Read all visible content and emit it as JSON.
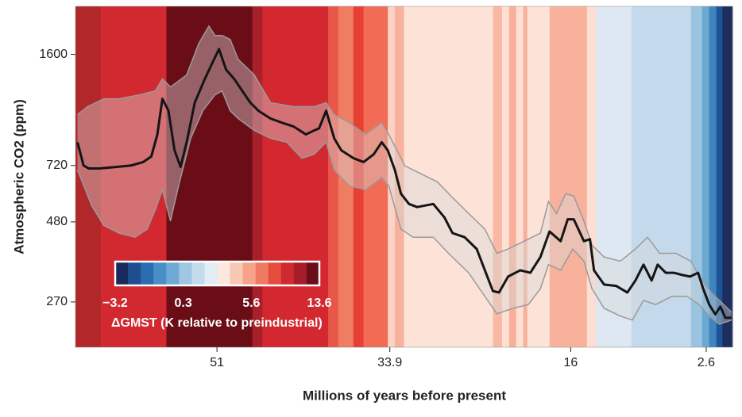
{
  "chart_data": {
    "type": "line",
    "x_label": "Millions of years before present",
    "y_label": "Atmospheric CO2 (ppm)",
    "xlim": [
      65,
      0
    ],
    "xticks": [
      51,
      33.9,
      16,
      2.6
    ],
    "ylim": [
      195,
      2260
    ],
    "yticks": [
      270,
      480,
      720,
      1600
    ],
    "log_y": true,
    "stripes": {
      "edges": [
        65,
        62.5,
        56,
        47.5,
        46.5,
        40,
        39,
        37.5,
        36.5,
        34.1,
        33.4,
        32.5,
        31,
        23.7,
        22.8,
        22.1,
        21.4,
        20.7,
        20.3,
        18.1,
        14.4,
        13.5,
        10,
        4.1,
        3,
        2.3,
        1.6,
        1,
        0
      ],
      "colors": [
        "#b2282a",
        "#d1292f",
        "#6b0d17",
        "#a8202a",
        "#d3282f",
        "#e8574a",
        "#f07c62",
        "#e83f34",
        "#f26c55",
        "#fbd3c4",
        "#f7b19d",
        "#fde2d6",
        "#fde3d7",
        "#f9b9a5",
        "#fde0d3",
        "#f8b09a",
        "#fde0d3",
        "#f7b09b",
        "#fde3d7",
        "#f8b29b",
        "#fdded2",
        "#dde8f3",
        "#c4d9ec",
        "#99c4e0",
        "#6ba8d2",
        "#3f84be",
        "#1b5596",
        "#1d2d5e"
      ]
    },
    "band": {
      "color": "rgba(215,215,215,0.42)",
      "edge_color": "#9a9a9a",
      "upper": {
        "x": [
          64.8,
          63.8,
          62.2,
          60.7,
          58.7,
          57.1,
          56.4,
          55.6,
          54.0,
          52.8,
          51.8,
          51.2,
          50.5,
          49.7,
          48.9,
          47.3,
          45.7,
          43.4,
          41.4,
          40.2,
          39.4,
          37.9,
          36.3,
          34.7,
          34.0,
          32.4,
          30.8,
          29.2,
          27.7,
          26.1,
          24.5,
          23.3,
          22.2,
          20.6,
          19.0,
          18.2,
          17.4,
          16.5,
          15.7,
          14.7,
          13.9,
          12.7,
          11.1,
          9.6,
          8.4,
          7.2,
          5.6,
          4.1,
          3.3,
          2.1,
          1.3,
          0.1
        ],
        "values": [
          1038,
          1099,
          1163,
          1163,
          1196,
          1231,
          1342,
          1266,
          1380,
          1731,
          1961,
          1833,
          1833,
          1782,
          1544,
          1380,
          1131,
          1099,
          1099,
          1131,
          1038,
          980,
          900,
          980,
          900,
          718,
          678,
          640,
          572,
          510,
          456,
          383,
          395,
          418,
          443,
          556,
          510,
          588,
          578,
          483,
          406,
          373,
          362,
          395,
          430,
          383,
          383,
          362,
          324,
          289,
          273,
          251
        ]
      },
      "lower": {
        "x": [
          64.8,
          63.4,
          62.2,
          60.7,
          59.1,
          57.9,
          57.1,
          56.4,
          55.6,
          54.8,
          53.6,
          52.4,
          51.2,
          50.5,
          49.7,
          48.9,
          47.3,
          45.7,
          44.1,
          42.6,
          41.4,
          40.2,
          39.4,
          37.9,
          36.3,
          34.7,
          34.0,
          32.8,
          31.6,
          29.6,
          28.1,
          26.1,
          24.5,
          23.3,
          21.7,
          20.2,
          19.0,
          18.2,
          17.0,
          15.8,
          14.7,
          13.9,
          12.7,
          11.1,
          9.9,
          8.8,
          7.6,
          6.0,
          4.5,
          3.3,
          2.3,
          1.3,
          0.1
        ],
        "values": [
          697,
          540,
          468,
          443,
          430,
          456,
          524,
          605,
          483,
          622,
          875,
          1067,
          1196,
          1231,
          1067,
          1009,
          926,
          875,
          851,
          759,
          780,
          851,
          697,
          622,
          605,
          659,
          622,
          456,
          430,
          430,
          383,
          333,
          281,
          248,
          258,
          265,
          297,
          353,
          339,
          395,
          362,
          297,
          258,
          244,
          237,
          273,
          265,
          281,
          281,
          265,
          244,
          230,
          237
        ]
      }
    },
    "series": [
      {
        "color": "#151515",
        "x": [
          64.8,
          64.2,
          63.7,
          62.6,
          61.1,
          59.5,
          58.3,
          57.5,
          56.9,
          56.4,
          55.8,
          55.2,
          54.6,
          54.0,
          53.2,
          52.2,
          51.4,
          50.8,
          50.1,
          49.3,
          48.5,
          47.7,
          46.9,
          45.7,
          44.6,
          43.4,
          42.2,
          41.4,
          40.9,
          40.2,
          39.4,
          38.7,
          37.5,
          36.5,
          35.5,
          34.7,
          34.1,
          33.4,
          32.8,
          32.0,
          31.2,
          29.6,
          28.5,
          27.7,
          26.5,
          25.3,
          24.4,
          23.7,
          23.1,
          22.2,
          21.0,
          20.0,
          19.0,
          18.1,
          17.0,
          16.3,
          15.7,
          14.7,
          14.1,
          13.7,
          12.7,
          11.5,
          10.4,
          9.6,
          8.8,
          8.0,
          7.4,
          6.6,
          5.8,
          5.0,
          4.2,
          3.4,
          2.9,
          2.3,
          1.7,
          1.2,
          0.7,
          0.1
        ],
        "values": [
          851,
          720,
          705,
          705,
          712,
          720,
          738,
          768,
          900,
          1163,
          1067,
          803,
          713,
          851,
          1131,
          1342,
          1519,
          1663,
          1434,
          1342,
          1231,
          1131,
          1067,
          1009,
          980,
          952,
          900,
          926,
          940,
          1067,
          875,
          803,
          759,
          738,
          780,
          851,
          803,
          697,
          588,
          546,
          534,
          546,
          496,
          443,
          430,
          395,
          333,
          292,
          289,
          324,
          339,
          333,
          373,
          448,
          418,
          489,
          489,
          418,
          424,
          339,
          306,
          303,
          289,
          315,
          353,
          315,
          353,
          333,
          333,
          328,
          324,
          333,
          297,
          265,
          247,
          261,
          241,
          241
        ]
      }
    ],
    "colorbar": {
      "label": "ΔGMST (K relative to preindustrial)",
      "colors": [
        "#1a2a5c",
        "#1f4e8f",
        "#2a6cb0",
        "#4a8ec6",
        "#6fa9d4",
        "#9ec7e2",
        "#c4dbee",
        "#e2ecf5",
        "#fde8de",
        "#f9c8b4",
        "#f5a48a",
        "#ef7a62",
        "#e64c3c",
        "#cf2a2f",
        "#a51d28",
        "#6b0d17"
      ],
      "ticks": [
        {
          "value": -3.2,
          "label": "−3.2"
        },
        0.3,
        5.6,
        13.6
      ]
    }
  }
}
